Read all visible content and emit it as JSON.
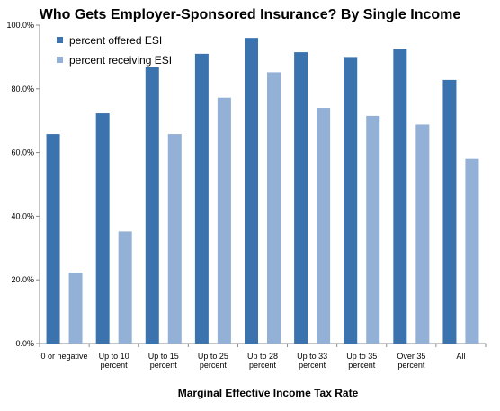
{
  "chart_data": {
    "type": "bar",
    "title": "Who Gets Employer-Sponsored Insurance? By Single Income",
    "xlabel": "Marginal Effective Income Tax Rate",
    "ylabel": "",
    "ylim": [
      0,
      100
    ],
    "y_tick_values": [
      0,
      20,
      40,
      60,
      80,
      100
    ],
    "y_tick_labels": [
      "0.0%",
      "20.0%",
      "40.0%",
      "60.0%",
      "80.0%",
      "100.0%"
    ],
    "grid": false,
    "legend_position": "top-left",
    "categories": [
      [
        "0 or negative"
      ],
      [
        "Up to 10",
        "percent"
      ],
      [
        "Up to 15",
        "percent"
      ],
      [
        "Up to 25",
        "percent"
      ],
      [
        "Up to 28",
        "percent"
      ],
      [
        "Up to 33",
        "percent"
      ],
      [
        "Up to 35",
        "percent"
      ],
      [
        "Over 35",
        "percent"
      ],
      [
        "All"
      ]
    ],
    "series": [
      {
        "name": "percent offered ESI",
        "color": "#3b73ae",
        "values": [
          65.8,
          72.3,
          86.8,
          91.0,
          96.0,
          91.5,
          90.0,
          92.5,
          82.8
        ]
      },
      {
        "name": "percent receiving ESI",
        "color": "#93b0d6",
        "values": [
          22.3,
          35.2,
          65.8,
          77.2,
          85.2,
          74.0,
          71.5,
          68.8,
          58.0
        ]
      }
    ]
  }
}
